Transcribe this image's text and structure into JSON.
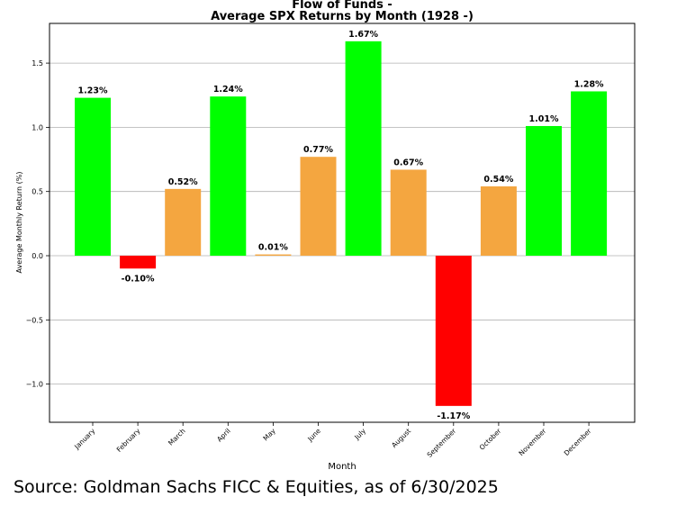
{
  "chart_data": {
    "type": "bar",
    "title": "Flow of Funds -",
    "subtitle": "Average SPX Returns by Month (1928 -)",
    "xlabel": "Month",
    "ylabel": "Average Monthly Return (%)",
    "categories": [
      "January",
      "February",
      "March",
      "April",
      "May",
      "June",
      "July",
      "August",
      "September",
      "October",
      "November",
      "December"
    ],
    "values": [
      1.23,
      -0.1,
      0.52,
      1.24,
      0.01,
      0.77,
      1.67,
      0.67,
      -1.17,
      0.54,
      1.01,
      1.28
    ],
    "data_labels": [
      "1.23%",
      "-0.10%",
      "0.52%",
      "1.24%",
      "0.01%",
      "0.77%",
      "1.67%",
      "0.67%",
      "-1.17%",
      "0.54%",
      "1.01%",
      "1.28%"
    ],
    "bar_colors": [
      "#00ff00",
      "#ff0000",
      "#f4a640",
      "#00ff00",
      "#f4a640",
      "#f4a640",
      "#00ff00",
      "#f4a640",
      "#ff0000",
      "#f4a640",
      "#00ff00",
      "#00ff00"
    ],
    "yticks": [
      -1.0,
      -0.5,
      0.0,
      0.5,
      1.0,
      1.5
    ],
    "ytick_labels": [
      "−1.0",
      "−0.5",
      "0.0",
      "0.5",
      "1.0",
      "1.5"
    ],
    "ylim": [
      -1.29,
      1.81
    ],
    "grid": "horizontal"
  },
  "source": "Source: Goldman Sachs FICC & Equities, as of 6/30/2025"
}
